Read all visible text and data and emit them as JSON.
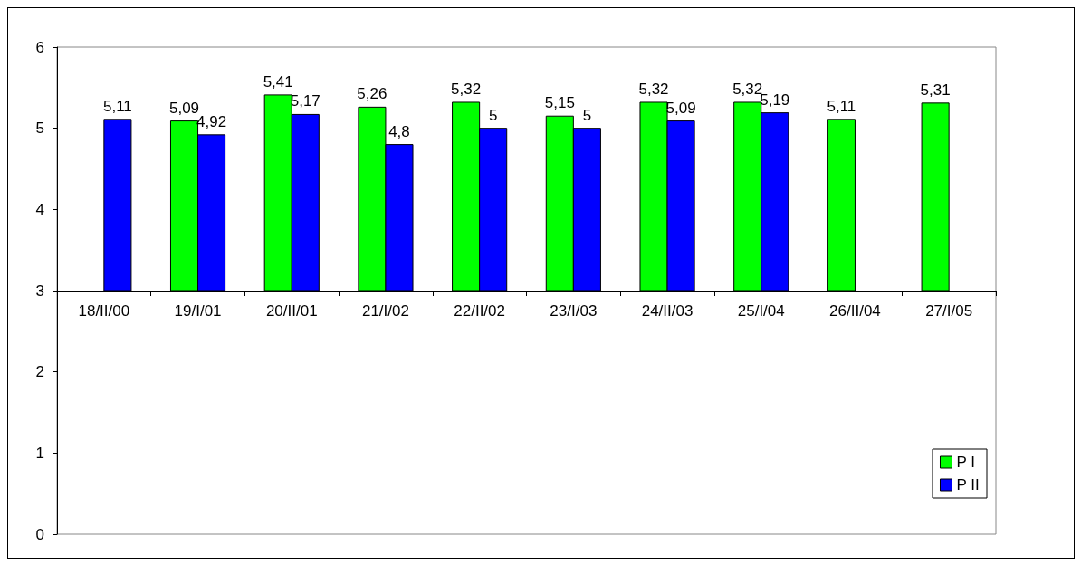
{
  "chart_data": {
    "type": "bar",
    "categories": [
      "18/II/00",
      "19/I/01",
      "20/II/01",
      "21/I/02",
      "22/II/02",
      "23/I/03",
      "24/II/03",
      "25/I/04",
      "26/II/04",
      "27/I/05"
    ],
    "series": [
      {
        "name": "P I",
        "color": "#00ff00",
        "base": [
          null,
          3,
          3,
          3,
          3,
          3,
          3,
          3,
          3,
          3
        ],
        "values": [
          null,
          2.09,
          2.41,
          2.26,
          2.32,
          2.15,
          2.32,
          2.32,
          2.11,
          2.31
        ],
        "value_labels": [
          null,
          "5,09",
          "5,41",
          "5,26",
          "5,32",
          "5,15",
          "5,32",
          "5,32",
          "5,11",
          "5,31"
        ]
      },
      {
        "name": "P II",
        "color": "#0000ff",
        "base": [
          3,
          3,
          3,
          3,
          3,
          3,
          3,
          3,
          null,
          null
        ],
        "values": [
          2.11,
          1.92,
          2.17,
          1.8,
          2,
          2,
          2.09,
          2.19,
          null,
          null
        ],
        "value_labels": [
          "5,11",
          "4,92",
          "5,17",
          "4,8",
          "5",
          "5",
          "5,09",
          "5,19",
          null,
          null
        ]
      }
    ],
    "ylim": [
      0,
      6
    ],
    "yticks": [
      0,
      1,
      2,
      3,
      4,
      5,
      6
    ],
    "grid": false,
    "legend": "bottom right"
  }
}
